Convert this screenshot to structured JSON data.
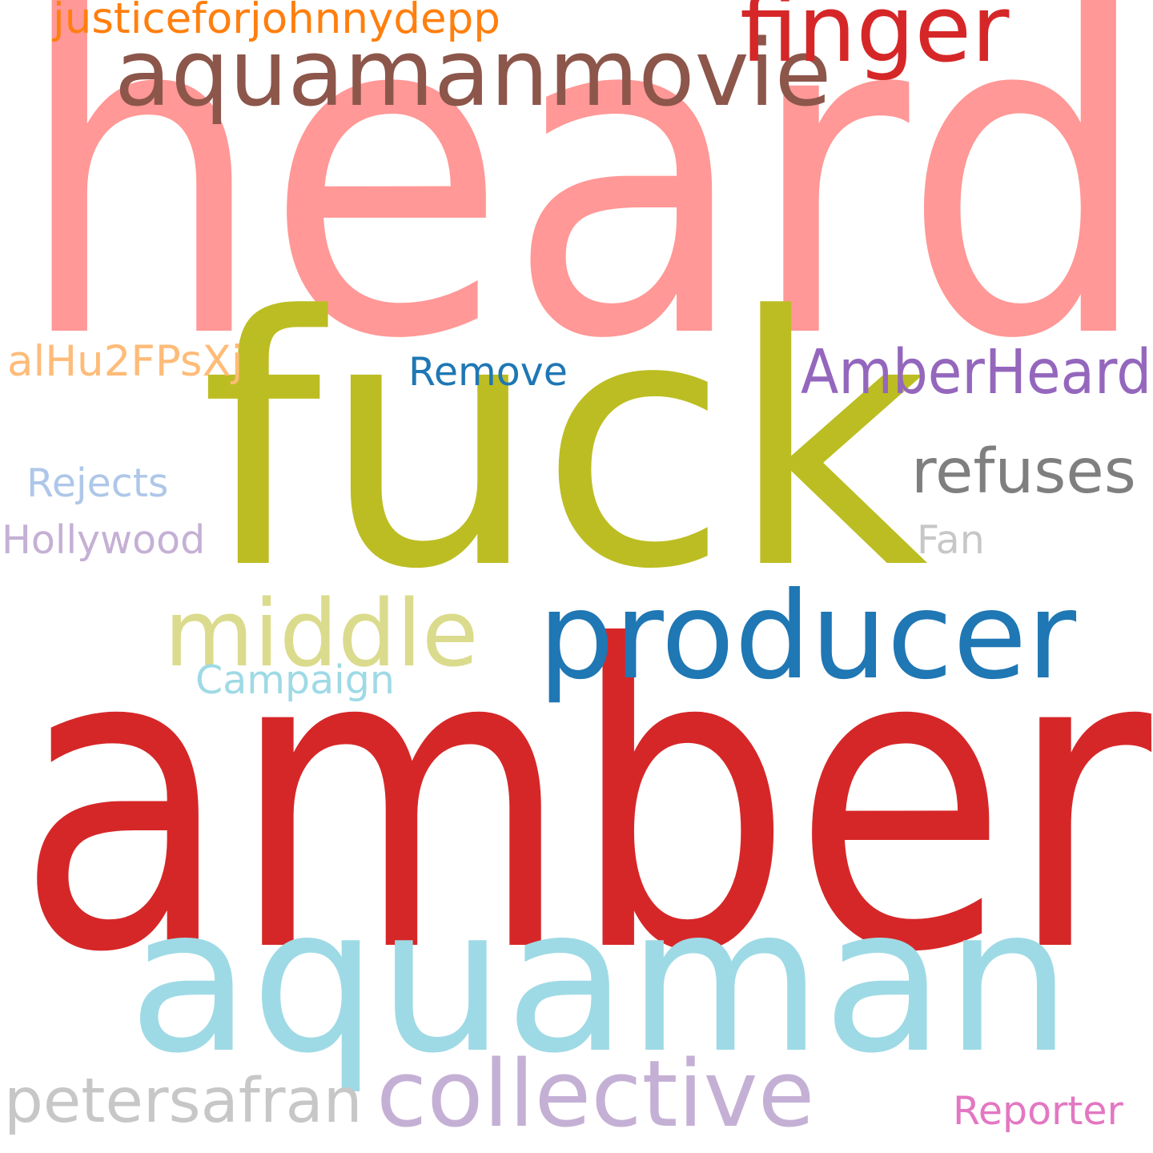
{
  "words": [
    {
      "text": "heard",
      "color": "#ff9896"
    },
    {
      "text": "amber",
      "color": "#d62728"
    },
    {
      "text": "fuck",
      "color": "#bcbd22"
    },
    {
      "text": "aquaman",
      "color": "#9edae5"
    },
    {
      "text": "producer",
      "color": "#1f77b4"
    },
    {
      "text": "aquamanmovie",
      "color": "#8c564b"
    },
    {
      "text": "finger",
      "color": "#d62728"
    },
    {
      "text": "middle",
      "color": "#dbdb8d"
    },
    {
      "text": "collective",
      "color": "#c5b0d5"
    },
    {
      "text": "AmberHeard",
      "color": "#9467bd"
    },
    {
      "text": "refuses",
      "color": "#7f7f7f"
    },
    {
      "text": "petersafran",
      "color": "#c7c7c7"
    },
    {
      "text": "justiceforjohnnydepp",
      "color": "#ff7f0e"
    },
    {
      "text": "alHu2FPsXj",
      "color": "#ffbb78"
    },
    {
      "text": "Remove",
      "color": "#1f77b4"
    },
    {
      "text": "Rejects",
      "color": "#aec7e8"
    },
    {
      "text": "Hollywood",
      "color": "#c5b0d5"
    },
    {
      "text": "Fan",
      "color": "#c7c7c7"
    },
    {
      "text": "Campaign",
      "color": "#9edae5"
    },
    {
      "text": "Reporter",
      "color": "#e377c2"
    }
  ]
}
